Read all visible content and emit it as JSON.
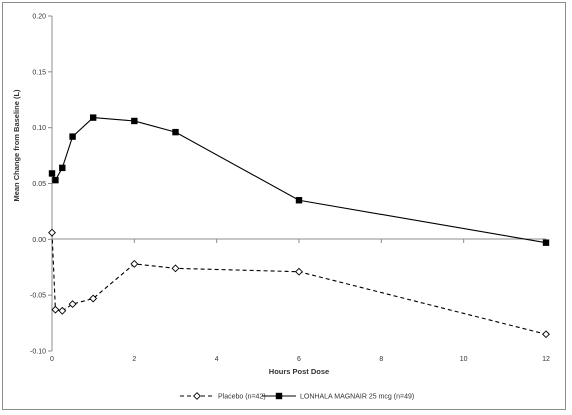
{
  "chart_data": {
    "type": "line",
    "title": "",
    "xlabel": "Hours Post Dose",
    "ylabel": "Mean Change from Baseline (L)",
    "xlim": [
      0,
      12
    ],
    "ylim": [
      -0.1,
      0.2
    ],
    "x_ticks": [
      0,
      2,
      4,
      6,
      8,
      10,
      12
    ],
    "y_ticks": [
      0.2,
      0.15,
      0.1,
      0.05,
      0.0,
      -0.05,
      -0.1
    ],
    "x_tick_labels": [
      "0",
      "2",
      "4",
      "6",
      "8",
      "10",
      "12"
    ],
    "y_tick_labels": [
      "0.20",
      "0.15",
      "0.10",
      "0.05",
      "0.00",
      "-0.05",
      "-0.10"
    ],
    "grid": false,
    "legend_position": "bottom",
    "series": [
      {
        "name": "Placebo (n=42)",
        "style": "dashed",
        "marker": "diamond-open",
        "color": "#000000",
        "x": [
          0,
          0.083,
          0.25,
          0.5,
          1,
          2,
          3,
          6,
          12
        ],
        "y": [
          0.006,
          -0.063,
          -0.064,
          -0.058,
          -0.053,
          -0.022,
          -0.026,
          -0.029,
          -0.085
        ]
      },
      {
        "name": "LONHALA MAGNAIR 25 mcg (n=49)",
        "style": "solid",
        "marker": "square-filled",
        "color": "#000000",
        "x": [
          0,
          0.083,
          0.25,
          0.5,
          1,
          2,
          3,
          6,
          12
        ],
        "y": [
          0.059,
          0.053,
          0.064,
          0.092,
          0.109,
          0.106,
          0.096,
          0.035,
          -0.003
        ]
      }
    ]
  }
}
